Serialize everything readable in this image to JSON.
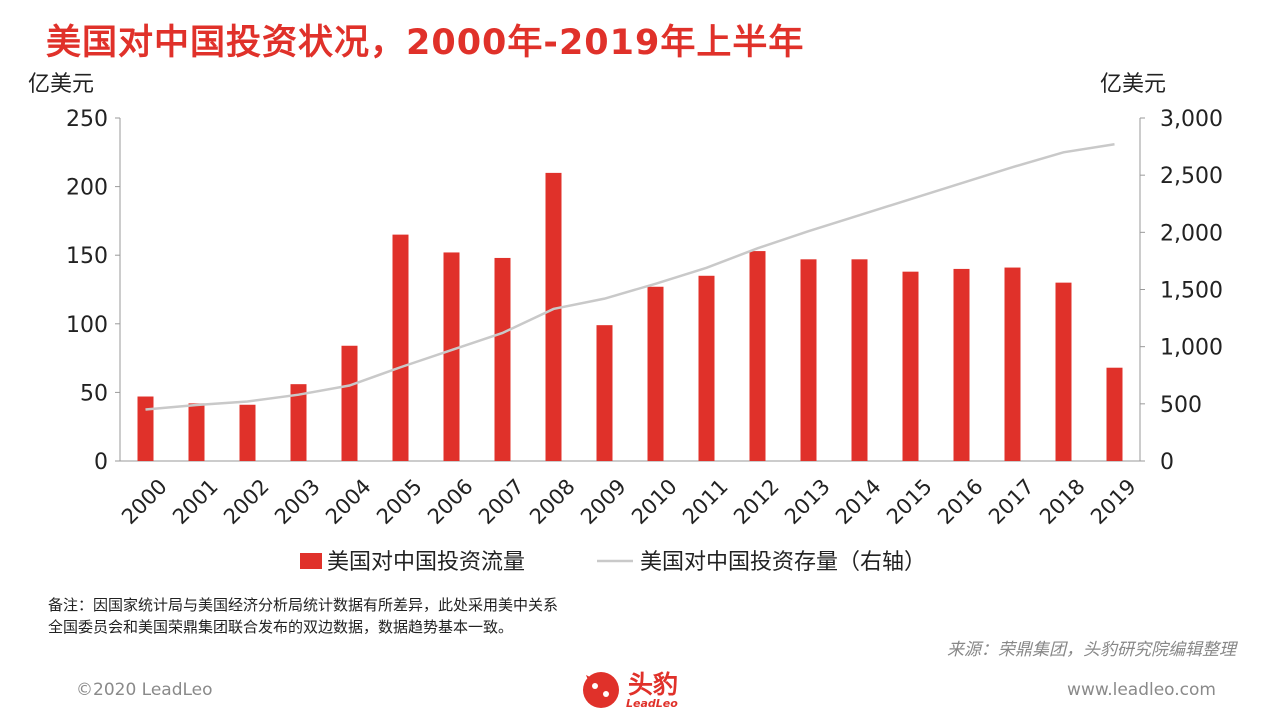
{
  "page": {
    "title": "美国对中国投资状况，2000年-2019年上半年",
    "note_line1": "备注：因国家统计局与美国经济分析局统计数据有所差异，此处采用美中关系",
    "note_line2": "全国委员会和美国荣鼎集团联合发布的双边数据，数据趋势基本一致。",
    "source": "来源：荣鼎集团，头豹研究院编辑整理",
    "copyright": "©2020 LeadLeo",
    "website": "www.leadleo.com",
    "logo_text": "头豹",
    "logo_sub": "LeadLeo",
    "accent_color": "#e0312a"
  },
  "chart_data": {
    "type": "bar",
    "categories": [
      "2000",
      "2001",
      "2002",
      "2003",
      "2004",
      "2005",
      "2006",
      "2007",
      "2008",
      "2009",
      "2010",
      "2011",
      "2012",
      "2013",
      "2014",
      "2015",
      "2016",
      "2017",
      "2018",
      "2019"
    ],
    "series": [
      {
        "name": "美国对中国投资流量",
        "type": "bar",
        "axis": "left",
        "color": "#e0312a",
        "values": [
          47,
          42,
          41,
          56,
          84,
          165,
          152,
          148,
          210,
          99,
          127,
          135,
          153,
          147,
          147,
          138,
          140,
          141,
          130,
          68
        ]
      },
      {
        "name": "美国对中国投资存量（右轴）",
        "type": "line",
        "axis": "right",
        "color": "#c9c9c9",
        "values": [
          450,
          490,
          520,
          580,
          660,
          820,
          970,
          1120,
          1330,
          1420,
          1550,
          1690,
          1860,
          2010,
          2150,
          2290,
          2430,
          2570,
          2700,
          2770
        ]
      }
    ],
    "ylabel": "亿美元",
    "ylabel_right": "亿美元",
    "ylim": [
      0,
      250
    ],
    "ylim_right": [
      0,
      3000
    ],
    "yticks": [
      0,
      50,
      100,
      150,
      200,
      250
    ],
    "yticks_right": [
      0,
      500,
      1000,
      1500,
      2000,
      2500,
      3000
    ],
    "ytick_labels_right": [
      "0",
      "500",
      "1,000",
      "1,500",
      "2,000",
      "2,500",
      "3,000"
    ],
    "legend_position": "bottom",
    "grid": false
  }
}
